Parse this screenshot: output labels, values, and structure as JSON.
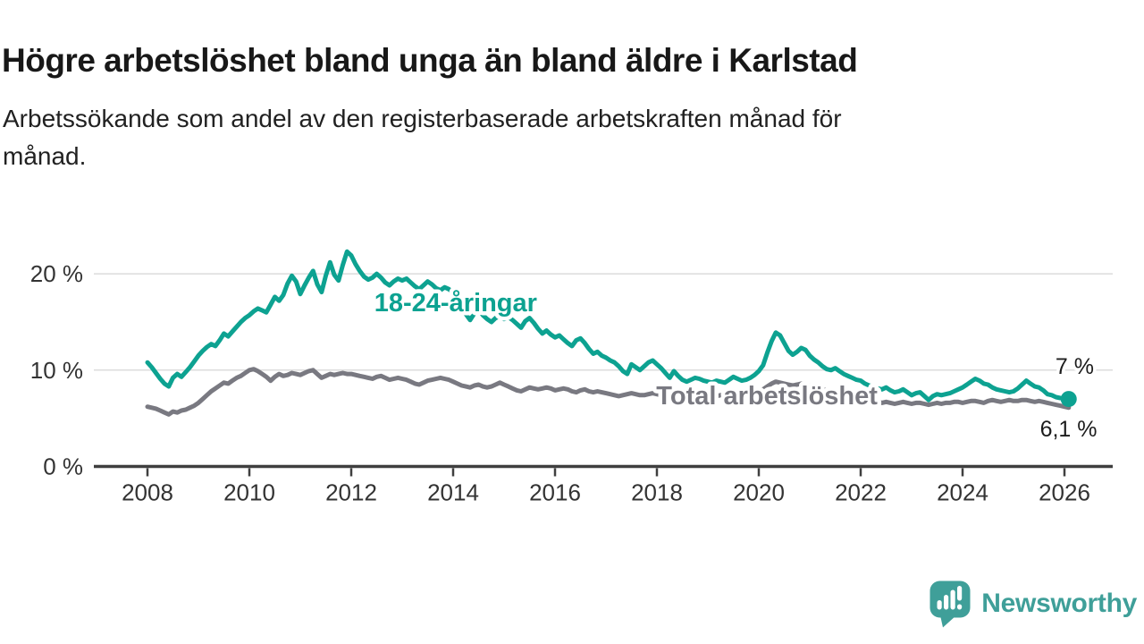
{
  "header": {
    "title": "Högre arbetslöshet bland unga än bland äldre i Karlstad",
    "subtitle_lines": [
      "Arbetssökande som andel av den registerbaserade arbetskraften månad för",
      "månad."
    ]
  },
  "chart_data": {
    "type": "line",
    "title": "Högre arbetslöshet bland unga än bland äldre i Karlstad",
    "subtitle": "Arbetssökande som andel av den registerbaserade arbetskraften månad för månad.",
    "unit": "%",
    "interval": "monthly",
    "x_start_year": 2008,
    "x_start": "2008-01",
    "x_end": "2026-02",
    "x_ticks": [
      2008,
      2010,
      2012,
      2014,
      2016,
      2018,
      2020,
      2022,
      2024,
      2026
    ],
    "y_ticks": [
      {
        "value": 0,
        "label": "0 %"
      },
      {
        "value": 10,
        "label": "10 %"
      },
      {
        "value": 20,
        "label": "20 %"
      }
    ],
    "ylim": [
      0,
      23.3
    ],
    "grid": true,
    "grid_color": "#dcdcdc",
    "axis_color": "#3f3f3f",
    "series": [
      {
        "name": "18-24-åringar",
        "color": "#0da291",
        "end_value_label": "7 %",
        "values": [
          10.8,
          10.3,
          9.7,
          9.1,
          8.6,
          8.3,
          9.2,
          9.6,
          9.3,
          9.8,
          10.3,
          10.9,
          11.5,
          12.0,
          12.4,
          12.7,
          12.5,
          13.1,
          13.8,
          13.5,
          14.0,
          14.5,
          15.0,
          15.4,
          15.7,
          16.1,
          16.4,
          16.2,
          16.0,
          16.8,
          17.6,
          17.2,
          17.8,
          19.0,
          19.8,
          19.2,
          17.9,
          18.8,
          19.6,
          20.3,
          18.9,
          18.1,
          19.8,
          21.2,
          19.9,
          19.3,
          20.9,
          22.3,
          21.9,
          21.0,
          20.3,
          19.7,
          19.4,
          19.6,
          20.0,
          19.6,
          19.1,
          18.8,
          19.2,
          19.5,
          19.3,
          19.5,
          19.1,
          18.7,
          18.4,
          18.8,
          19.2,
          18.9,
          18.5,
          18.3,
          18.6,
          18.4,
          18.0,
          17.4,
          16.6,
          15.8,
          15.2,
          15.9,
          16.3,
          15.7,
          15.3,
          15.0,
          15.4,
          15.6,
          15.3,
          15.5,
          15.2,
          14.8,
          14.4,
          15.1,
          15.4,
          14.9,
          14.3,
          13.8,
          14.1,
          13.7,
          13.4,
          13.6,
          13.2,
          12.8,
          12.5,
          13.1,
          13.3,
          12.8,
          12.2,
          11.7,
          11.9,
          11.5,
          11.3,
          11.0,
          10.8,
          10.4,
          9.9,
          9.6,
          10.6,
          10.3,
          10.0,
          10.4,
          10.8,
          11.0,
          10.6,
          10.2,
          9.7,
          9.2,
          9.9,
          9.4,
          9.0,
          8.8,
          9.0,
          9.2,
          9.1,
          8.9,
          8.8,
          8.7,
          8.9,
          8.8,
          8.7,
          9.0,
          9.3,
          9.1,
          8.9,
          9.0,
          9.2,
          9.5,
          9.9,
          10.5,
          11.8,
          13.0,
          13.9,
          13.6,
          12.8,
          12.0,
          11.6,
          11.9,
          12.3,
          12.1,
          11.5,
          11.1,
          10.8,
          10.4,
          10.1,
          10.0,
          10.2,
          9.9,
          9.6,
          9.4,
          9.2,
          9.0,
          8.9,
          8.6,
          8.4,
          8.3,
          8.1,
          8.0,
          8.2,
          7.9,
          7.7,
          7.8,
          8.0,
          7.7,
          7.4,
          7.6,
          7.7,
          7.3,
          6.9,
          7.3,
          7.5,
          7.4,
          7.5,
          7.6,
          7.8,
          8.0,
          8.2,
          8.5,
          8.8,
          9.1,
          8.9,
          8.6,
          8.5,
          8.2,
          8.0,
          7.9,
          7.8,
          7.7,
          7.8,
          8.1,
          8.5,
          8.9,
          8.6,
          8.3,
          8.2,
          7.9,
          7.5,
          7.4,
          7.2,
          7.1,
          7.0,
          7.0
        ]
      },
      {
        "name": "Total arbetslöshet",
        "color": "#797981",
        "end_value_label": "6,1 %",
        "values": [
          6.2,
          6.1,
          6.0,
          5.8,
          5.6,
          5.4,
          5.7,
          5.6,
          5.8,
          5.9,
          6.1,
          6.3,
          6.6,
          7.0,
          7.4,
          7.8,
          8.1,
          8.4,
          8.7,
          8.6,
          8.9,
          9.2,
          9.4,
          9.7,
          10.0,
          10.1,
          9.9,
          9.6,
          9.3,
          8.9,
          9.3,
          9.6,
          9.4,
          9.5,
          9.7,
          9.6,
          9.5,
          9.7,
          9.9,
          10.0,
          9.6,
          9.2,
          9.4,
          9.6,
          9.5,
          9.6,
          9.7,
          9.6,
          9.6,
          9.5,
          9.4,
          9.3,
          9.2,
          9.1,
          9.3,
          9.4,
          9.2,
          9.0,
          9.1,
          9.2,
          9.1,
          9.0,
          8.8,
          8.6,
          8.5,
          8.7,
          8.9,
          9.0,
          9.1,
          9.2,
          9.1,
          9.0,
          8.8,
          8.6,
          8.4,
          8.3,
          8.2,
          8.4,
          8.5,
          8.3,
          8.2,
          8.3,
          8.5,
          8.7,
          8.5,
          8.3,
          8.1,
          7.9,
          7.8,
          8.0,
          8.2,
          8.1,
          8.0,
          8.1,
          8.2,
          8.1,
          7.9,
          8.0,
          8.1,
          8.0,
          7.8,
          7.7,
          7.9,
          8.0,
          7.8,
          7.7,
          7.8,
          7.7,
          7.6,
          7.5,
          7.4,
          7.3,
          7.4,
          7.5,
          7.6,
          7.5,
          7.4,
          7.4,
          7.5,
          7.6,
          7.5,
          7.4,
          7.3,
          7.2,
          7.3,
          7.2,
          7.4,
          7.3,
          7.2,
          7.3,
          7.4,
          7.5,
          7.4,
          7.3,
          7.3,
          7.4,
          7.3,
          7.4,
          7.5,
          7.4,
          7.3,
          7.4,
          7.5,
          7.6,
          7.8,
          8.0,
          8.3,
          8.6,
          8.8,
          8.7,
          8.6,
          8.5,
          8.4,
          8.5,
          8.6,
          8.5,
          8.4,
          8.3,
          8.2,
          8.0,
          7.9,
          7.7,
          7.8,
          7.6,
          7.4,
          7.3,
          7.2,
          7.1,
          7.0,
          6.9,
          6.8,
          6.8,
          6.7,
          6.6,
          6.7,
          6.6,
          6.5,
          6.6,
          6.7,
          6.6,
          6.5,
          6.6,
          6.6,
          6.5,
          6.4,
          6.5,
          6.6,
          6.5,
          6.6,
          6.6,
          6.7,
          6.7,
          6.6,
          6.7,
          6.8,
          6.8,
          6.7,
          6.6,
          6.8,
          6.9,
          6.8,
          6.7,
          6.8,
          6.9,
          6.8,
          6.8,
          6.9,
          6.9,
          6.8,
          6.7,
          6.8,
          6.7,
          6.6,
          6.5,
          6.4,
          6.3,
          6.2,
          6.1
        ]
      }
    ],
    "series_labels": [
      {
        "text": "18-24-åringar",
        "color": "#0da291",
        "x_year": 2014.05,
        "y_value": 16.1
      },
      {
        "text": "Total arbetslöshet",
        "color": "#797981",
        "x_year": 2020.16,
        "y_value": 6.45
      }
    ],
    "end_value_labels": [
      {
        "text": "7 %",
        "x_year": 2026.2,
        "y_value": 9.6
      },
      {
        "text": "6,1 %",
        "x_year": 2026.08,
        "y_value": 3.1
      }
    ],
    "legend_position": "inline-labels"
  },
  "footer": {
    "brand": "Newsworthy",
    "brand_color": "#3f9f99"
  }
}
